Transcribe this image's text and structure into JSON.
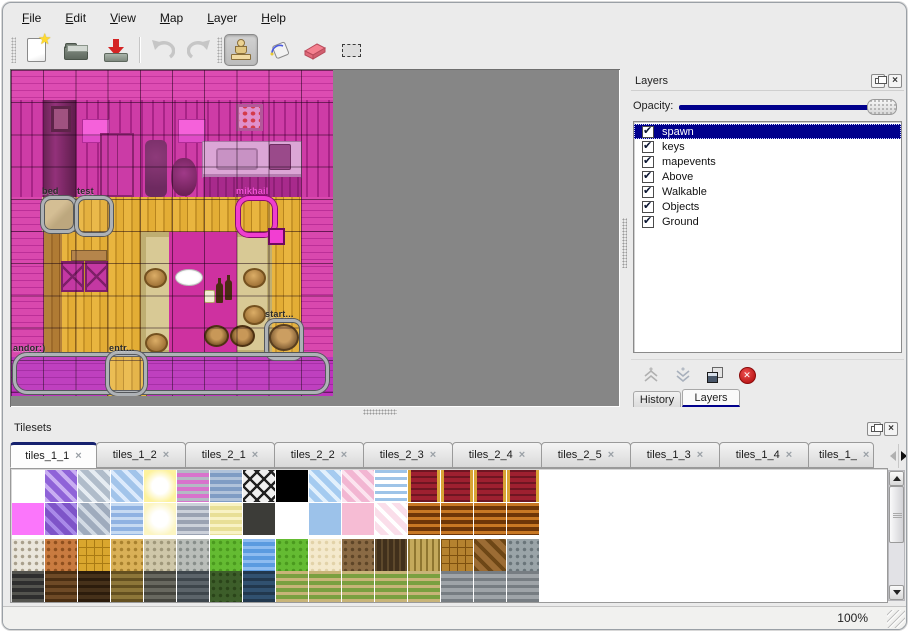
{
  "colors": {
    "accent_navy": "#00008c",
    "map_pink": "#d443ab",
    "floor_yellow": "#e3ad35",
    "delete_red": "#d42222",
    "window_bg": "#ebebeb"
  },
  "menu": {
    "items": [
      {
        "label": "File"
      },
      {
        "label": "Edit"
      },
      {
        "label": "View"
      },
      {
        "label": "Map"
      },
      {
        "label": "Layer"
      },
      {
        "label": "Help"
      }
    ]
  },
  "toolbar": {
    "buttons": [
      {
        "name": "new-file"
      },
      {
        "name": "open-file"
      },
      {
        "name": "save-file"
      },
      {
        "name": "undo"
      },
      {
        "name": "redo"
      },
      {
        "name": "stamp-tool",
        "active": true
      },
      {
        "name": "fill-tool"
      },
      {
        "name": "eraser-tool"
      },
      {
        "name": "rect-select-tool"
      }
    ]
  },
  "map": {
    "labels": {
      "bed": "bed",
      "test": "test",
      "mikhail": "mikhail",
      "start": "start...",
      "andor": "andor:)",
      "entr": "entr..."
    }
  },
  "layers_panel": {
    "title": "Layers",
    "opacity_label": "Opacity:",
    "layers": [
      {
        "name": "spawn",
        "checked": true,
        "selected": true
      },
      {
        "name": "keys",
        "checked": true,
        "selected": false
      },
      {
        "name": "mapevents",
        "checked": true,
        "selected": false
      },
      {
        "name": "Above",
        "checked": true,
        "selected": false
      },
      {
        "name": "Walkable",
        "checked": true,
        "selected": false
      },
      {
        "name": "Objects",
        "checked": true,
        "selected": false
      },
      {
        "name": "Ground",
        "checked": true,
        "selected": false
      }
    ],
    "buttons": [
      "raise-layer",
      "lower-layer",
      "duplicate-layer",
      "delete-layer"
    ]
  },
  "dock_tabs": {
    "history": "History",
    "layers": "Layers",
    "active": "Layers"
  },
  "tilesets_panel": {
    "title": "Tilesets",
    "tabs": [
      {
        "label": "tiles_1_1",
        "active": true
      },
      {
        "label": "tiles_1_2"
      },
      {
        "label": "tiles_2_1"
      },
      {
        "label": "tiles_2_2"
      },
      {
        "label": "tiles_2_3"
      },
      {
        "label": "tiles_2_4"
      },
      {
        "label": "tiles_2_5"
      },
      {
        "label": "tiles_1_3"
      },
      {
        "label": "tiles_1_4"
      },
      {
        "label": "tiles_1_",
        "partial": true
      }
    ]
  },
  "tile_palette": {
    "rows": [
      [
        [
          "#ffffff",
          ""
        ],
        [
          "#8f63d8",
          "diag",
          "#c9aef2"
        ],
        [
          "#b0bcca",
          "diag",
          "#e6ecf2"
        ],
        [
          "#a2c4ea",
          "diag",
          "#dceafc"
        ],
        [
          "#fdf29e",
          "glow",
          "#ffffff"
        ],
        [
          "#d873cc",
          "h",
          "#b4bac4"
        ],
        [
          "#7f9cc4",
          "h",
          "#b0c2da"
        ],
        [
          "#efefef",
          "lattice",
          "#222222"
        ],
        [
          "#000000",
          ""
        ],
        [
          "#a5cbf0",
          "diag",
          "#e2f0fc"
        ],
        [
          "#f2b6d2",
          "diag",
          "#fce4ef"
        ],
        [
          "#ffffff",
          "h",
          "#9ec4e8"
        ],
        [
          "#9e2030",
          "carpet",
          "#d8a435"
        ],
        [
          "#9e2030",
          "carpet",
          "#d8a435"
        ],
        [
          "#9e2030",
          "carpet",
          "#d8a435"
        ],
        [
          "#9e2030",
          "carpet",
          "#d8a435"
        ]
      ],
      [
        [
          "#fb76fb",
          ""
        ],
        [
          "#7e54c8",
          "diag",
          "#a98ae8"
        ],
        [
          "#9fabbd",
          "diag",
          "#d2dae4"
        ],
        [
          "#8fb2e2",
          "h",
          "#c6daf2"
        ],
        [
          "#fcf5c2",
          "glow",
          "#ffffff"
        ],
        [
          "#9aa2b2",
          "h",
          "#ccd1da"
        ],
        [
          "#e8df96",
          "h",
          "#f8f2c4"
        ],
        [
          "#3c3c38",
          ""
        ],
        [
          "#ffffff",
          ""
        ],
        [
          "#9cc2ea",
          ""
        ],
        [
          "#f6bcd4",
          ""
        ],
        [
          "#fadeea",
          "diag",
          "#ffffff"
        ],
        [
          "#6e3608",
          "h",
          "#c87824"
        ],
        [
          "#6e3608",
          "h",
          "#c87824"
        ],
        [
          "#6e3608",
          "h",
          "#c87824"
        ],
        [
          "#6e3608",
          "h",
          "#c87824"
        ]
      ],
      [
        [
          "#eae6dc",
          "dots",
          "#a89f8c"
        ],
        [
          "#c97b40",
          "dots",
          "#8f4f1e"
        ],
        [
          "#d9a62e",
          "grid",
          "#a87a14"
        ],
        [
          "#d9b057",
          "dots",
          "#a8812e"
        ],
        [
          "#cfc7a9",
          "dots",
          "#9f977a"
        ],
        [
          "#b9bdb9",
          "dots",
          "#878d8a"
        ],
        [
          "#64bb32",
          "dots",
          "#4a9a1e"
        ],
        [
          "#5b9be0",
          "h",
          "#8ebcf0"
        ],
        [
          "#64bb32",
          "dots",
          "#4a9a1e"
        ],
        [
          "#f4e9cc",
          "dots",
          "#e2d2a8"
        ],
        [
          "#8a6a44",
          "dots",
          "#5e4527"
        ],
        [
          "#41301c",
          "v",
          "#5e492c"
        ],
        [
          "#c4a95b",
          "v",
          "#8f7630"
        ],
        [
          "#b5822f",
          "grid",
          "#7d500f"
        ],
        [
          "#9c6c34",
          "diag",
          "#6e4716"
        ],
        [
          "#9aa4a8",
          "dots",
          "#6a757a"
        ]
      ],
      [
        [
          "#2e2e2e",
          "h",
          "#53534e"
        ],
        [
          "#6e4a26",
          "h",
          "#4a2e12"
        ],
        [
          "#46311a",
          "h",
          "#2c1c0c"
        ],
        [
          "#8d7639",
          "h",
          "#645020"
        ],
        [
          "#68685f",
          "h",
          "#45453e"
        ],
        [
          "#5c646a",
          "h",
          "#3e464c"
        ],
        [
          "#3d5e2a",
          "dots",
          "#2a4419"
        ],
        [
          "#315170",
          "h",
          "#22384e"
        ],
        [
          "#7aa040",
          "h",
          "#c8b478"
        ],
        [
          "#7aa040",
          "h",
          "#c8b478"
        ],
        [
          "#7aa040",
          "h",
          "#c8b478"
        ],
        [
          "#7aa040",
          "h",
          "#c8b478"
        ],
        [
          "#7aa040",
          "h",
          "#c8b478"
        ],
        [
          "#9fa4a8",
          "h",
          "#777d82"
        ],
        [
          "#9fa4a8",
          "h",
          "#777d82"
        ],
        [
          "#9fa4a8",
          "h",
          "#777d82"
        ]
      ]
    ]
  },
  "statusbar": {
    "zoom": "100%"
  }
}
